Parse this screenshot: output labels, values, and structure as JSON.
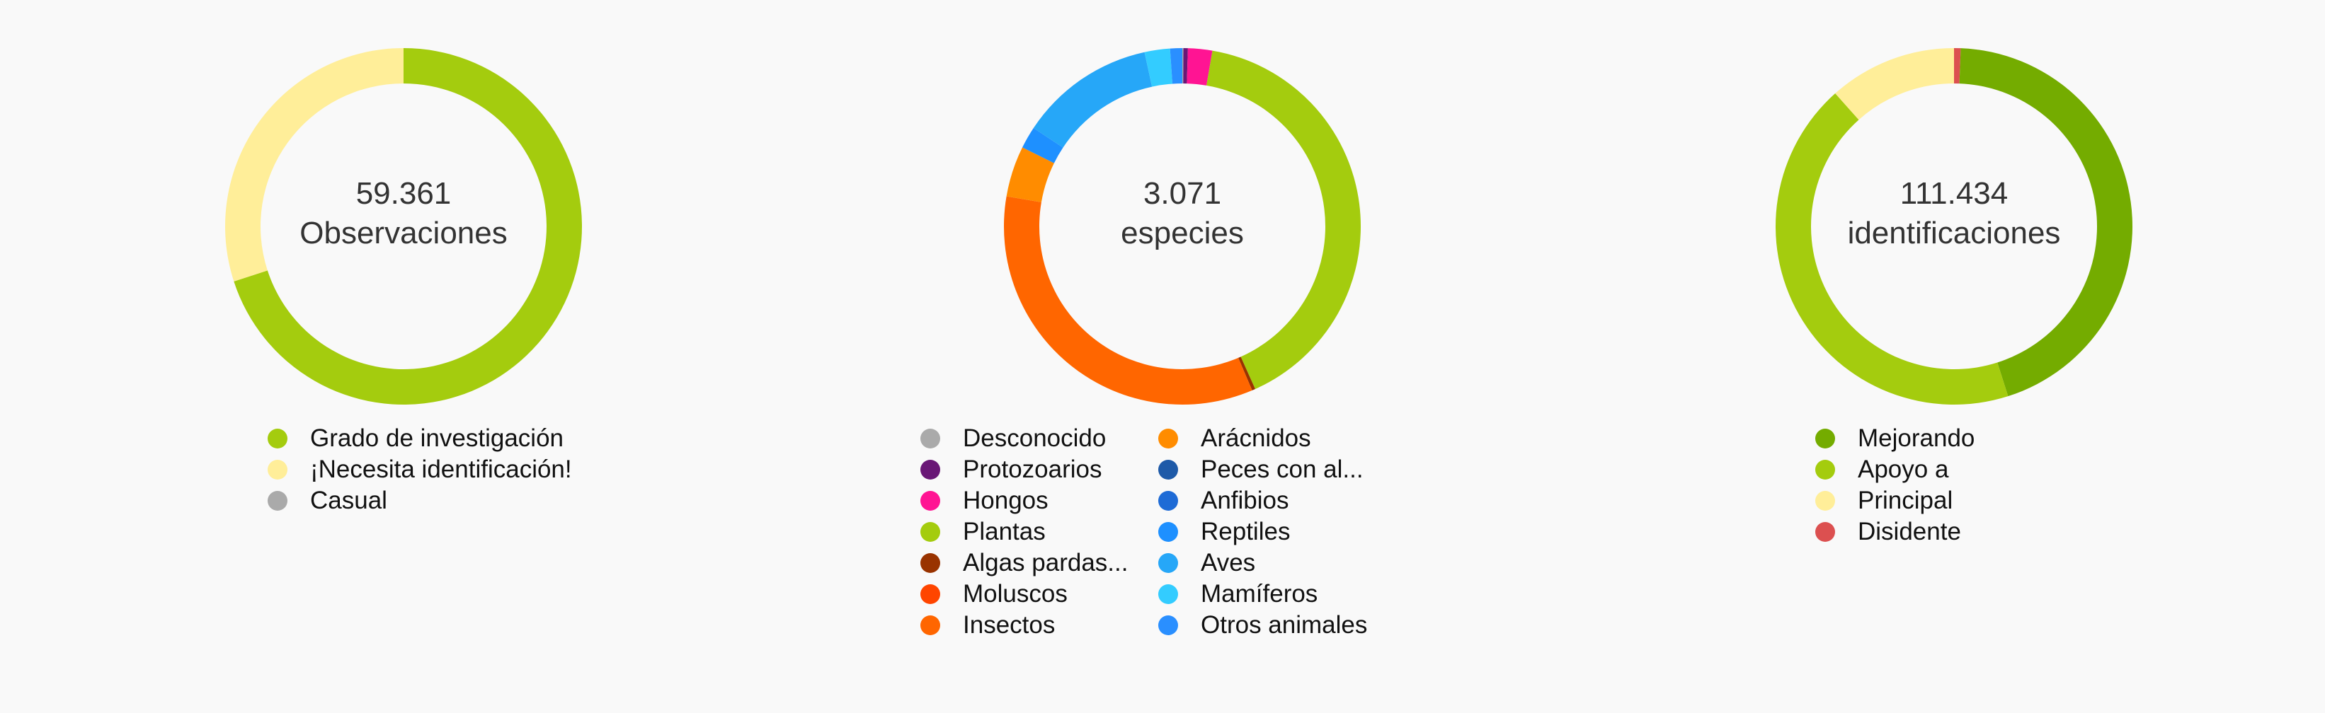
{
  "chart_data": [
    {
      "type": "pie",
      "center": {
        "value": "59.361",
        "label": "Observaciones"
      },
      "categories": [
        "Grado de investigación",
        "¡Necesita identificación!",
        "Casual"
      ],
      "values": [
        70,
        30,
        0
      ],
      "colors": [
        "#a4cc0e",
        "#ffee99",
        "#aaaaaa"
      ],
      "legend_position": "bottom"
    },
    {
      "type": "pie",
      "center": {
        "value": "3.071",
        "label": "especies"
      },
      "categories": [
        "Desconocido",
        "Protozoarios",
        "Hongos",
        "Plantas",
        "Algas pardas...",
        "Moluscos",
        "Insectos",
        "Arácnidos",
        "Peces con al...",
        "Anfibios",
        "Reptiles",
        "Aves",
        "Mamíferos",
        "Otros animales"
      ],
      "values": [
        0.1,
        0.4,
        2.2,
        40.6,
        0.3,
        0,
        34.1,
        4.6,
        0,
        0,
        2.0,
        12.3,
        2.3,
        1.1
      ],
      "colors": [
        "#aaaaaa",
        "#691776",
        "#ff1493",
        "#a4cc0e",
        "#993300",
        "#ff4500",
        "#ff6600",
        "#ff8c00",
        "#1e5aa8",
        "#1e6bd6",
        "#1e90ff",
        "#26a7f8",
        "#33ccff",
        "#2a8fff"
      ],
      "legend_position": "bottom"
    },
    {
      "type": "pie",
      "center": {
        "value": "111.434",
        "label": "identificaciones"
      },
      "categories": [
        "Mejorando",
        "Apoyo a",
        "Principal",
        "Disidente"
      ],
      "values": [
        44.5,
        43.3,
        11.6,
        0.6
      ],
      "colors": [
        "#74ac00",
        "#a4cc0e",
        "#ffee99",
        "#dc5050"
      ],
      "start_with": [
        "Disidente",
        "Mejorando",
        "Apoyo a",
        "Principal"
      ],
      "legend_position": "bottom"
    }
  ]
}
